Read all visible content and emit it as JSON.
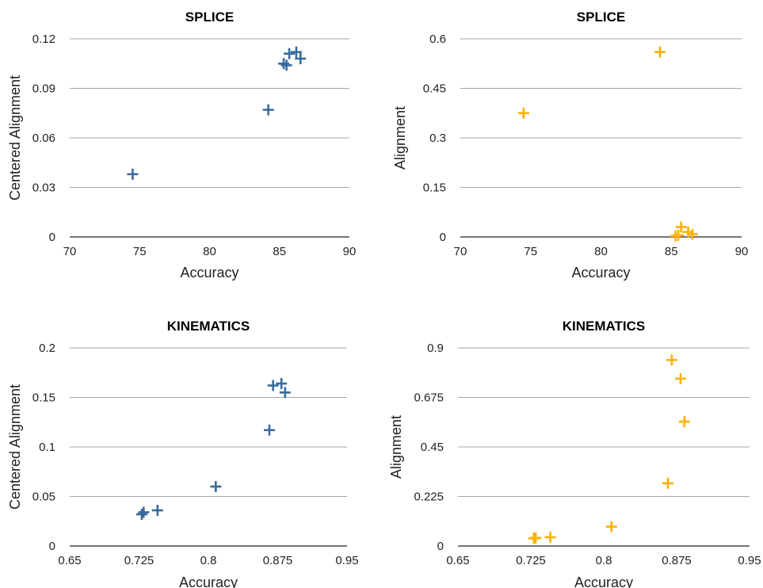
{
  "chart_data": [
    {
      "type": "scatter",
      "title": "SPLICE",
      "xlabel": "Accuracy",
      "ylabel": "Centered Alignment",
      "xlim": [
        70,
        90
      ],
      "ylim": [
        0,
        0.12
      ],
      "xticks": [
        "70",
        "75",
        "80",
        "85",
        "90"
      ],
      "yticks": [
        "0",
        "0.03",
        "0.06",
        "0.09",
        "0.12"
      ],
      "color": "#3a6b9c",
      "marker": "plus",
      "points": [
        {
          "x": 74.5,
          "y": 0.038
        },
        {
          "x": 84.2,
          "y": 0.077
        },
        {
          "x": 85.3,
          "y": 0.105
        },
        {
          "x": 85.5,
          "y": 0.104
        },
        {
          "x": 85.7,
          "y": 0.111
        },
        {
          "x": 86.2,
          "y": 0.112
        },
        {
          "x": 86.5,
          "y": 0.108
        }
      ]
    },
    {
      "type": "scatter",
      "title": "SPLICE",
      "xlabel": "Accuracy",
      "ylabel": "Alignment",
      "xlim": [
        70,
        90
      ],
      "ylim": [
        0,
        0.6
      ],
      "xticks": [
        "70",
        "75",
        "80",
        "85",
        "90"
      ],
      "yticks": [
        "0",
        "0.15",
        "0.3",
        "0.45",
        "0.6"
      ],
      "color": "#ffb000",
      "marker": "plus",
      "points": [
        {
          "x": 74.5,
          "y": 0.375
        },
        {
          "x": 84.2,
          "y": 0.56
        },
        {
          "x": 85.3,
          "y": 0.003
        },
        {
          "x": 85.7,
          "y": 0.03
        },
        {
          "x": 86.2,
          "y": 0.015
        },
        {
          "x": 86.5,
          "y": 0.008
        },
        {
          "x": 85.5,
          "y": 0.005
        }
      ]
    },
    {
      "type": "scatter",
      "title": "KINEMATICS",
      "xlabel": "Accuracy",
      "ylabel": "Centered Alignment",
      "xlim": [
        0.65,
        0.95
      ],
      "ylim": [
        0,
        0.2
      ],
      "xticks": [
        "0.65",
        "0.725",
        "0.8",
        "0.875",
        "0.95"
      ],
      "yticks": [
        "0",
        "0.05",
        "0.1",
        "0.15",
        "0.2"
      ],
      "color": "#3a6b9c",
      "marker": "plus",
      "points": [
        {
          "x": 0.728,
          "y": 0.032
        },
        {
          "x": 0.73,
          "y": 0.034
        },
        {
          "x": 0.745,
          "y": 0.036
        },
        {
          "x": 0.808,
          "y": 0.06
        },
        {
          "x": 0.866,
          "y": 0.117
        },
        {
          "x": 0.87,
          "y": 0.162
        },
        {
          "x": 0.879,
          "y": 0.164
        },
        {
          "x": 0.883,
          "y": 0.155
        }
      ]
    },
    {
      "type": "scatter",
      "title": "KINEMATICS",
      "xlabel": "Accuracy",
      "ylabel": "Alignment",
      "xlim": [
        0.65,
        0.95
      ],
      "ylim": [
        0,
        0.9
      ],
      "xticks": [
        "0.65",
        "0.725",
        "0.8",
        "0.875",
        "0.95"
      ],
      "yticks": [
        "0",
        "0.225",
        "0.45",
        "0.675",
        "0.9"
      ],
      "color": "#ffb000",
      "marker": "plus",
      "points": [
        {
          "x": 0.728,
          "y": 0.035
        },
        {
          "x": 0.73,
          "y": 0.037
        },
        {
          "x": 0.745,
          "y": 0.04
        },
        {
          "x": 0.808,
          "y": 0.088
        },
        {
          "x": 0.866,
          "y": 0.285
        },
        {
          "x": 0.87,
          "y": 0.845
        },
        {
          "x": 0.879,
          "y": 0.76
        },
        {
          "x": 0.883,
          "y": 0.565
        }
      ]
    }
  ]
}
